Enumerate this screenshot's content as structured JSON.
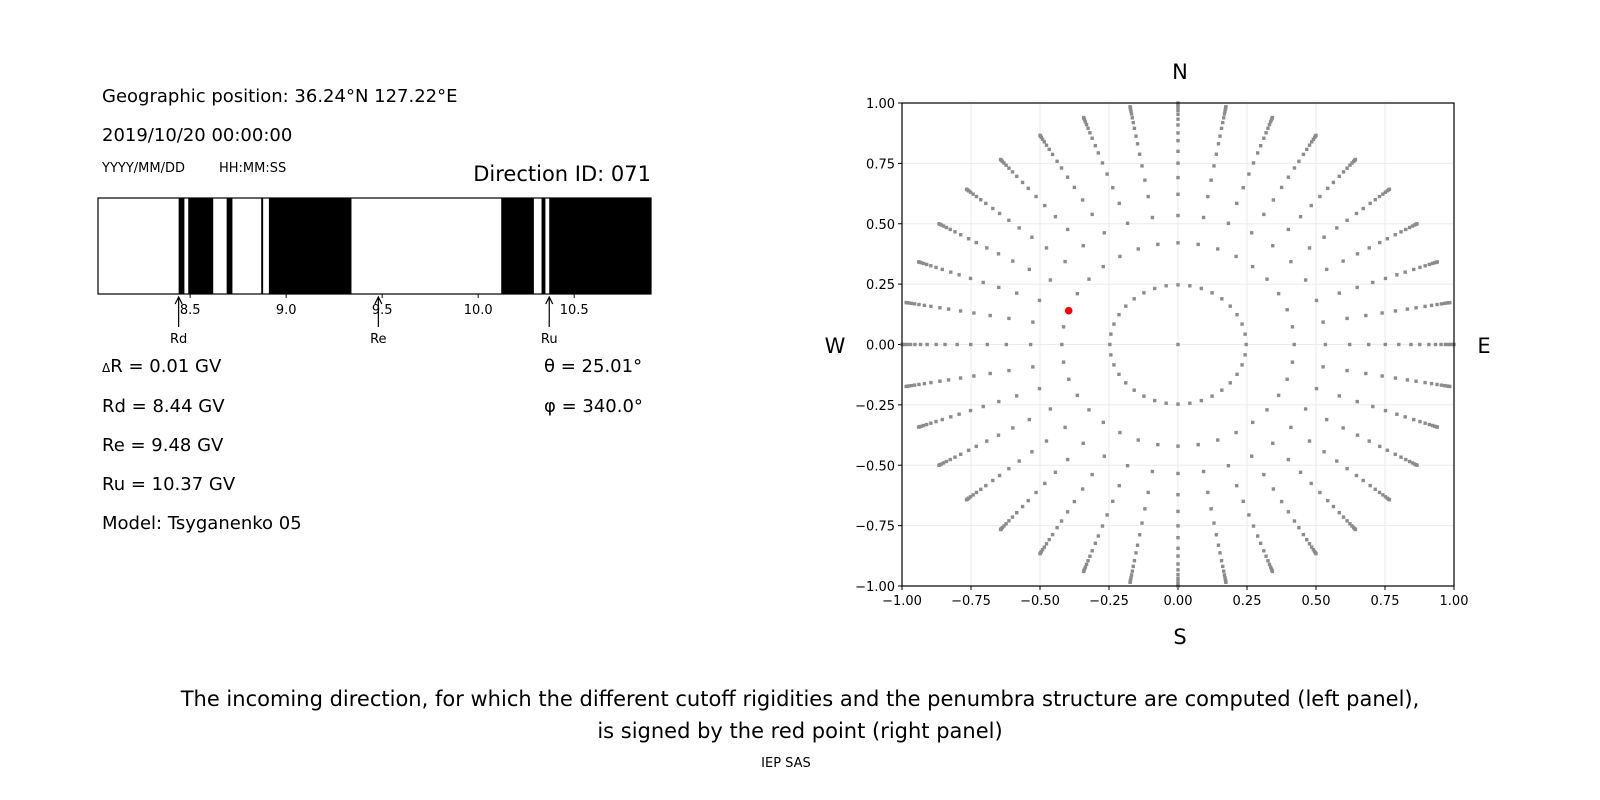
{
  "info": {
    "geo_position": "Geographic position: 36.24°N 127.22°E",
    "datetime": "2019/10/20 00:00:00",
    "date_format": "YYYY/MM/DD",
    "time_format": "HH:MM:SS",
    "direction_id": "Direction ID: 071",
    "delta_r_symbol": "Δ",
    "delta_r": "R = 0.01 GV",
    "rd": "Rd = 8.44 GV",
    "re": "Re = 9.48 GV",
    "ru": "Ru = 10.37 GV",
    "model": "Model: Tsyganenko 05",
    "theta": "θ = 25.01°",
    "phi": "φ = 340.0°"
  },
  "caption": {
    "line1": "The incoming direction, for which the different cutoff rigidities and the penumbra structure are computed (left panel),",
    "line2": "is signed by the red point (right panel)",
    "credit": "IEP SAS"
  },
  "colors": {
    "band": "#000000",
    "point": "#8c8c8c",
    "selected": "#ff0000",
    "grid": "#ebebeb"
  },
  "chart_data": [
    {
      "type": "bar",
      "title": "",
      "xlabel": "",
      "xlim": [
        8.02,
        10.9
      ],
      "xticks": [
        "8.5",
        "9.0",
        "9.5",
        "10.0",
        "10.5"
      ],
      "xtick_values": [
        8.5,
        9.0,
        9.5,
        10.0,
        10.5
      ],
      "black_bands": [
        [
          8.44,
          8.47
        ],
        [
          8.49,
          8.62
        ],
        [
          8.69,
          8.72
        ],
        [
          8.87,
          8.88
        ],
        [
          8.91,
          9.34
        ],
        [
          10.12,
          10.29
        ],
        [
          10.33,
          10.35
        ],
        [
          10.37,
          10.9
        ]
      ],
      "markers": [
        {
          "label": "Rd",
          "value": 8.44
        },
        {
          "label": "Re",
          "value": 9.48
        },
        {
          "label": "Ru",
          "value": 10.37
        }
      ]
    },
    {
      "type": "scatter",
      "title": "",
      "xlim": [
        -1,
        1
      ],
      "ylim": [
        -1,
        1
      ],
      "xticks": [
        "−1.00",
        "−0.75",
        "−0.50",
        "−0.25",
        "0.00",
        "0.25",
        "0.50",
        "0.75",
        "1.00"
      ],
      "yticks": [
        "−1.00",
        "−0.75",
        "−0.50",
        "−0.25",
        "0.00",
        "0.25",
        "0.50",
        "0.75",
        "1.00"
      ],
      "tick_values": [
        -1,
        -0.75,
        -0.5,
        -0.25,
        0,
        0.25,
        0.5,
        0.75,
        1
      ],
      "grid": true,
      "compass": {
        "north": "N",
        "south": "S",
        "west": "W",
        "east": "E"
      },
      "center_point": [
        0,
        0
      ],
      "ring_radii": [
        0.247,
        0.421,
        0.534,
        0.622,
        0.691,
        0.751,
        0.8,
        0.844,
        0.876,
        0.909,
        0.933,
        0.953,
        0.969,
        0.981,
        0.99,
        0.996,
        1.0
      ],
      "points_per_ring": 36,
      "angle_step_deg": 10,
      "selected_point": [
        -0.396,
        0.14
      ]
    }
  ]
}
